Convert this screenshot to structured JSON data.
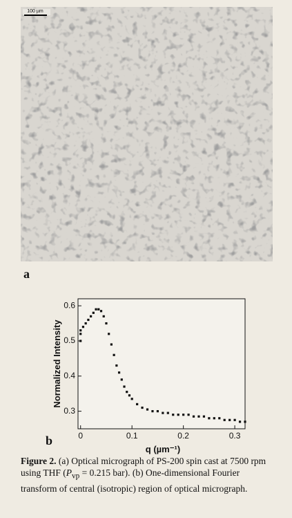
{
  "figure": {
    "scale_bar": "100 µm",
    "panel_a": "a",
    "panel_b": "b",
    "caption": {
      "label": "Figure 2.",
      "text_1": "(a) Optical micrograph of PS-200 spin cast at 7500 rpm using THF (",
      "symbol": "P",
      "subscript": "vp",
      "text_2": " = 0.215 bar). (b) One-dimensional Fourier transform of central (isotropic) region of optical micrograph."
    }
  },
  "chart_data": {
    "type": "scatter",
    "x_label": "q (µm⁻¹)",
    "y_label": "Normalized Intensity",
    "color": "#111111",
    "x": [
      0,
      0,
      0,
      0.005,
      0.01,
      0.015,
      0.02,
      0.025,
      0.03,
      0.035,
      0.04,
      0.045,
      0.05,
      0.055,
      0.06,
      0.065,
      0.07,
      0.075,
      0.08,
      0.085,
      0.09,
      0.095,
      0.1,
      0.11,
      0.12,
      0.13,
      0.14,
      0.15,
      0.16,
      0.17,
      0.18,
      0.19,
      0.2,
      0.21,
      0.22,
      0.23,
      0.24,
      0.25,
      0.26,
      0.27,
      0.28,
      0.29,
      0.3,
      0.31,
      0.32
    ],
    "values": [
      0.52,
      0.53,
      0.5,
      0.54,
      0.55,
      0.56,
      0.57,
      0.58,
      0.59,
      0.59,
      0.585,
      0.57,
      0.55,
      0.52,
      0.49,
      0.46,
      0.43,
      0.41,
      0.39,
      0.37,
      0.355,
      0.345,
      0.335,
      0.32,
      0.31,
      0.305,
      0.3,
      0.3,
      0.295,
      0.295,
      0.29,
      0.29,
      0.29,
      0.29,
      0.285,
      0.285,
      0.285,
      0.28,
      0.28,
      0.28,
      0.275,
      0.275,
      0.275,
      0.27,
      0.27
    ],
    "xlim": [
      -0.005,
      0.32
    ],
    "ylim": [
      0.25,
      0.62
    ],
    "xticks": [
      0,
      0.1,
      0.2,
      0.3
    ],
    "yticks": [
      0.3,
      0.4,
      0.5,
      0.6
    ]
  }
}
